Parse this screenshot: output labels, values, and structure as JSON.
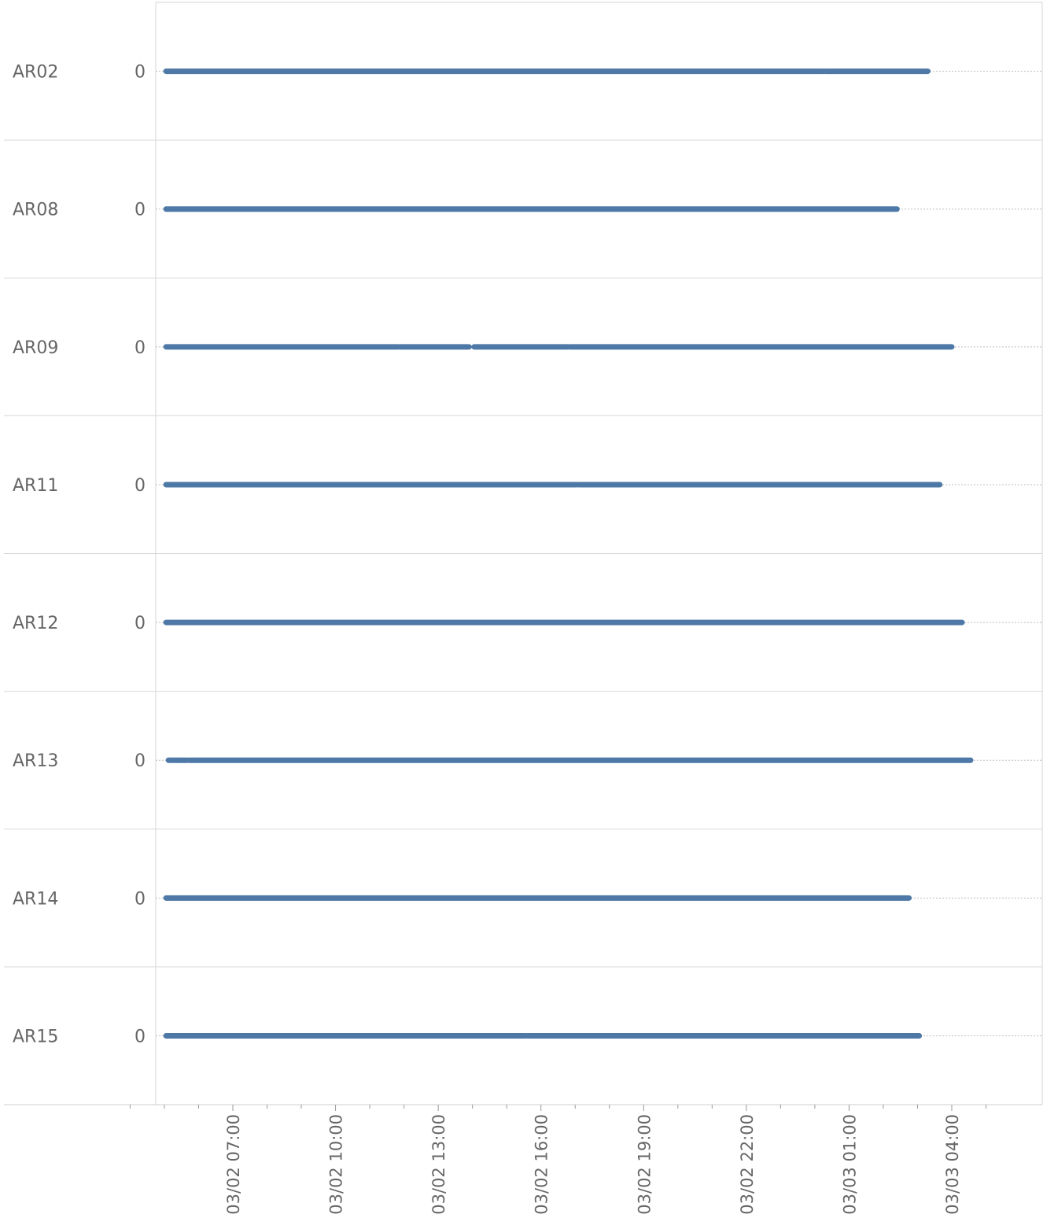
{
  "chart_data": {
    "type": "line",
    "title": "",
    "xlabel": "",
    "ylabel": "",
    "x_axis": {
      "type": "datetime",
      "range_hours": [
        4.0,
        29.2
      ],
      "ticks": [
        {
          "label": "03/02 07:00",
          "hour": 7
        },
        {
          "label": "03/02 10:00",
          "hour": 10
        },
        {
          "label": "03/02 13:00",
          "hour": 13
        },
        {
          "label": "03/02 16:00",
          "hour": 16
        },
        {
          "label": "03/02 19:00",
          "hour": 19
        },
        {
          "label": "03/02 22:00",
          "hour": 22
        },
        {
          "label": "03/03 01:00",
          "hour": 25
        },
        {
          "label": "03/03 04:00",
          "hour": 28
        }
      ]
    },
    "y_tick_label": "0",
    "grid": true,
    "line_color": "#4e79a7",
    "rows": [
      {
        "name": "AR02",
        "value": 0,
        "segments": [
          [
            5.05,
            24.25
          ],
          [
            24.3,
            27.3
          ]
        ]
      },
      {
        "name": "AR08",
        "value": 0,
        "segments": [
          [
            5.05,
            26.4
          ]
        ]
      },
      {
        "name": "AR09",
        "value": 0,
        "segments": [
          [
            5.05,
            11.85
          ],
          [
            11.9,
            13.9
          ],
          [
            14.05,
            16.8
          ],
          [
            16.85,
            28.0
          ]
        ]
      },
      {
        "name": "AR11",
        "value": 0,
        "segments": [
          [
            5.05,
            17.05
          ],
          [
            17.1,
            27.65
          ]
        ]
      },
      {
        "name": "AR12",
        "value": 0,
        "segments": [
          [
            5.05,
            28.3
          ]
        ]
      },
      {
        "name": "AR13",
        "value": 0,
        "segments": [
          [
            5.12,
            5.65
          ],
          [
            5.7,
            28.55
          ]
        ]
      },
      {
        "name": "AR14",
        "value": 0,
        "segments": [
          [
            5.05,
            26.75
          ]
        ]
      },
      {
        "name": "AR15",
        "value": 0,
        "segments": [
          [
            5.05,
            15.55
          ],
          [
            15.6,
            27.05
          ]
        ]
      }
    ]
  }
}
